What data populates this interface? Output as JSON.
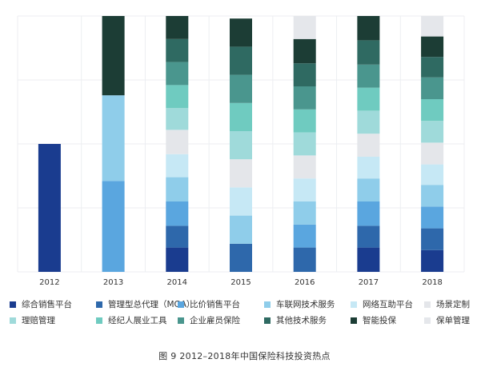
{
  "chart_data": {
    "type": "bar",
    "stacked": true,
    "normalized": true,
    "ylim": [
      0,
      100
    ],
    "grid": true,
    "legend_position": "bottom",
    "categories": [
      "2012",
      "2013",
      "2014",
      "2015",
      "2016",
      "2017",
      "2018"
    ],
    "series": [
      {
        "name": "综合销售平台",
        "color": "#1a3c8f",
        "values": [
          50,
          0,
          9.5,
          0,
          0,
          9.5,
          8.5
        ]
      },
      {
        "name": "管理型总代理（MGA）",
        "color": "#2e68ab",
        "values": [
          0,
          0,
          8.5,
          11,
          9.5,
          8.5,
          8.5
        ]
      },
      {
        "name": "比价销售平台",
        "color": "#5aa6df",
        "values": [
          0,
          35.5,
          9.5,
          0,
          9,
          9.5,
          8.5
        ]
      },
      {
        "name": "车联网技术服务",
        "color": "#8fcdea",
        "values": [
          0,
          33.5,
          9.5,
          11,
          9,
          9,
          8.5
        ]
      },
      {
        "name": "网络互助平台",
        "color": "#c6e8f5",
        "values": [
          0,
          0,
          9,
          11,
          9,
          8.5,
          8
        ]
      },
      {
        "name": "场景定制",
        "color": "#e4e6ea",
        "values": [
          0,
          0,
          9.5,
          11,
          9,
          9,
          8.5
        ]
      },
      {
        "name": "理赔管理",
        "color": "#9fdada",
        "values": [
          0,
          0,
          8.5,
          11,
          9,
          9,
          8.5
        ]
      },
      {
        "name": "经纪人展业工具",
        "color": "#6fcbc0",
        "values": [
          0,
          0,
          9,
          11,
          9,
          9,
          8.5
        ]
      },
      {
        "name": "企业雇员保险",
        "color": "#4a968e",
        "values": [
          0,
          0,
          9,
          11,
          9,
          9,
          8.5
        ]
      },
      {
        "name": "其他技术服务",
        "color": "#2f6a62",
        "values": [
          0,
          0,
          9,
          11,
          9,
          9.5,
          8
        ]
      },
      {
        "name": "智能投保",
        "color": "#1c3d35",
        "values": [
          0,
          31,
          9,
          11,
          9.5,
          9.5,
          8
        ]
      },
      {
        "name": "保单管理",
        "color": "#e5e7eb",
        "values": [
          0,
          0,
          0,
          0,
          9,
          0,
          8
        ]
      }
    ]
  },
  "caption": "图 9  2012–2018年中国保险科技投资热点"
}
